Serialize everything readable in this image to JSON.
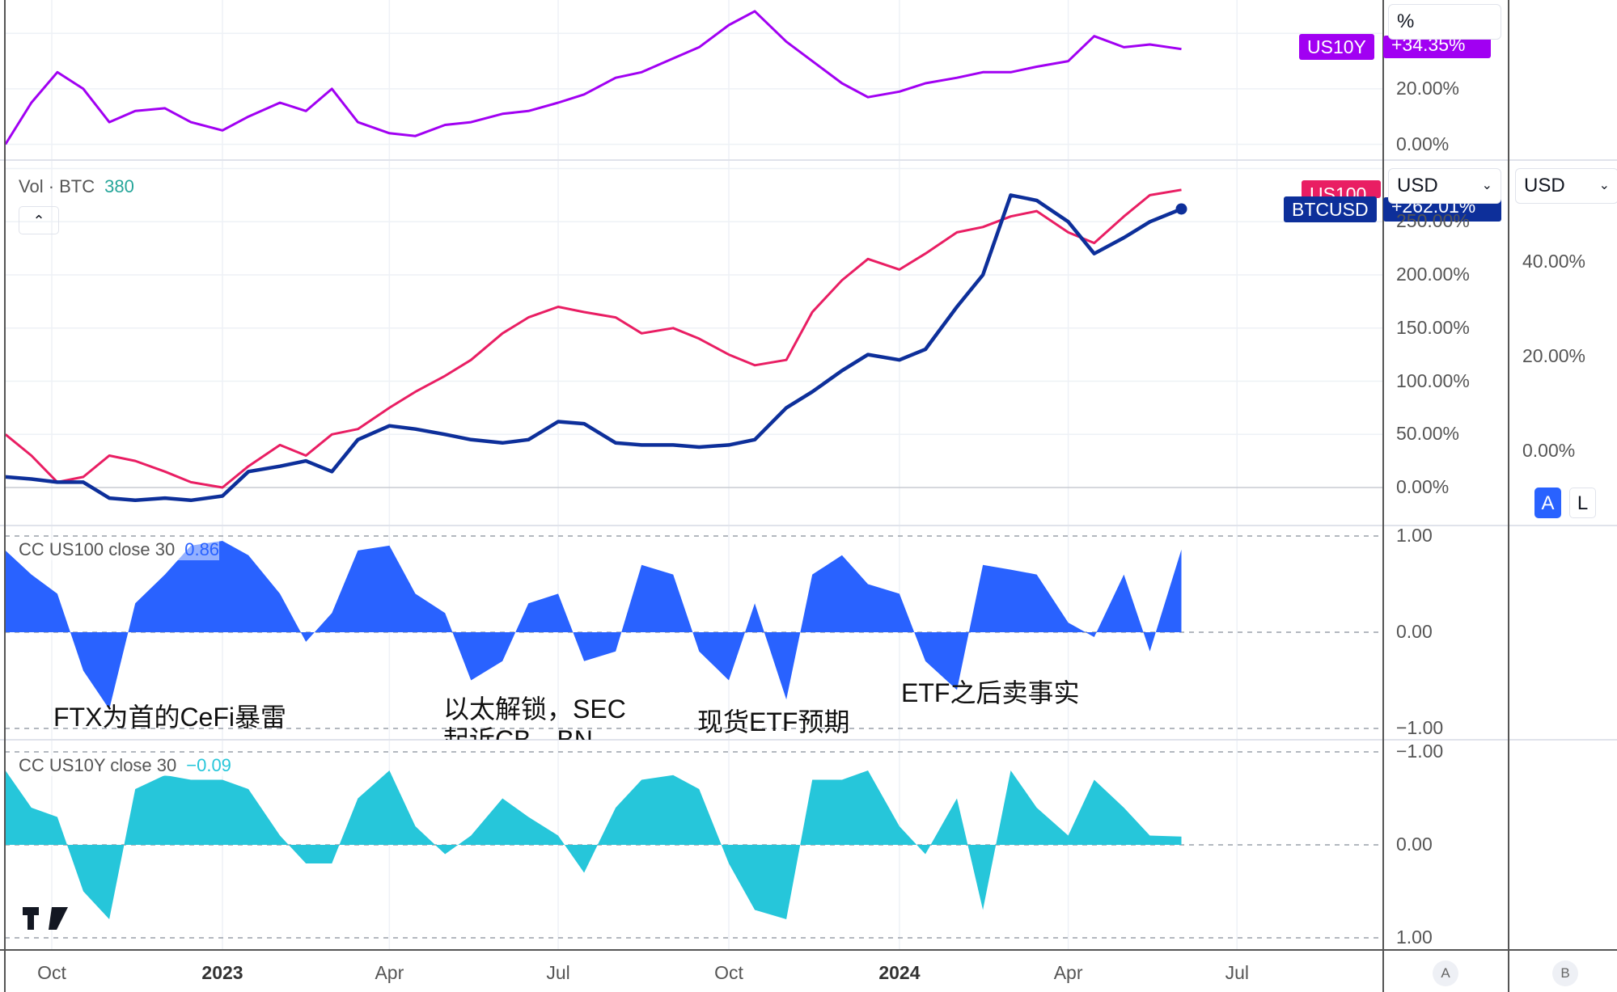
{
  "colors": {
    "us10y": "#a100f2",
    "us100": "#e91e63",
    "btcusd": "#0d2f9a",
    "cc_us100": "#2962ff",
    "cc_us10y": "#26c6da",
    "volume_value": "#26a69a"
  },
  "legends": {
    "volume": {
      "label": "Vol · BTC",
      "value": "380"
    },
    "cc_us100": {
      "label": "CC US100 close 30",
      "value": "0.86"
    },
    "cc_us10y": {
      "label": "CC US10Y close 30",
      "value": "−0.09"
    }
  },
  "badges": {
    "us10y": {
      "symbol": "US10Y",
      "value": "+34.35%"
    },
    "us100": {
      "symbol": "US100"
    },
    "btcusd": {
      "symbol": "BTCUSD",
      "value": "+262.01%"
    }
  },
  "controls": {
    "scale_mode": "%",
    "currency_left": "USD",
    "currency_right": "USD",
    "auto_button": "A",
    "log_button": "L",
    "bottom_left_circle": "A",
    "bottom_right_circle": "B",
    "collapse_icon": "chevron-up-icon"
  },
  "annotations": [
    {
      "text": "FTX为首的CeFi暴雷"
    },
    {
      "text": "以太解锁，SEC"
    },
    {
      "text": "起诉CB、BN"
    },
    {
      "text": "现货ETF预期"
    },
    {
      "text": "ETF之后卖事实"
    }
  ],
  "chart_data": [
    {
      "type": "line",
      "pane": "US10Y",
      "x": [
        "2022-09-06",
        "2022-09-20",
        "2022-10-04",
        "2022-10-18",
        "2022-11-01",
        "2022-11-15",
        "2022-12-01",
        "2022-12-15",
        "2023-01-01",
        "2023-01-15",
        "2023-02-01",
        "2023-02-15",
        "2023-03-01",
        "2023-03-15",
        "2023-04-01",
        "2023-04-15",
        "2023-05-01",
        "2023-05-15",
        "2023-06-01",
        "2023-06-15",
        "2023-07-01",
        "2023-07-15",
        "2023-08-01",
        "2023-08-15",
        "2023-09-01",
        "2023-09-15",
        "2023-10-01",
        "2023-10-15",
        "2023-11-01",
        "2023-11-15",
        "2023-12-01",
        "2023-12-15",
        "2024-01-01",
        "2024-01-15",
        "2024-02-01",
        "2024-02-15",
        "2024-03-01",
        "2024-03-15",
        "2024-04-01",
        "2024-04-15",
        "2024-05-01",
        "2024-05-15",
        "2024-06-01"
      ],
      "series": [
        {
          "name": "US10Y",
          "values": [
            0,
            15,
            26,
            20,
            8,
            12,
            13,
            8,
            5,
            10,
            15,
            12,
            20,
            8,
            4,
            3,
            7,
            8,
            11,
            12,
            15,
            18,
            24,
            26,
            31,
            35,
            43,
            48,
            37,
            30,
            22,
            17,
            19,
            22,
            24,
            26,
            26,
            28,
            30,
            39,
            35,
            36,
            34.35
          ]
        }
      ],
      "yticks": [
        "20.00%",
        "0.00%"
      ],
      "ytick_values": [
        20,
        0
      ],
      "ylim": [
        -12,
        52
      ]
    },
    {
      "type": "line",
      "pane": "main",
      "x": "shared",
      "series": [
        {
          "name": "US100",
          "values": [
            50,
            30,
            5,
            10,
            30,
            25,
            15,
            5,
            0,
            20,
            40,
            30,
            50,
            55,
            75,
            90,
            105,
            120,
            145,
            160,
            170,
            165,
            160,
            145,
            150,
            140,
            125,
            115,
            120,
            165,
            195,
            215,
            205,
            220,
            240,
            245,
            255,
            260,
            240,
            230,
            255,
            275,
            280
          ]
        },
        {
          "name": "BTCUSD",
          "values": [
            10,
            8,
            5,
            5,
            -10,
            -12,
            -10,
            -12,
            -8,
            15,
            20,
            25,
            15,
            45,
            58,
            55,
            50,
            45,
            42,
            45,
            62,
            60,
            42,
            40,
            40,
            38,
            40,
            45,
            75,
            90,
            110,
            125,
            120,
            130,
            170,
            200,
            275,
            270,
            250,
            220,
            235,
            250,
            262.01
          ]
        }
      ],
      "yticks": [
        "250.00%",
        "200.00%",
        "150.00%",
        "100.00%",
        "50.00%",
        "0.00%"
      ],
      "ytick_values": [
        250,
        200,
        150,
        100,
        50,
        0
      ],
      "secondary_yticks": [
        "40.00%",
        "20.00%",
        "0.00%"
      ]
    },
    {
      "type": "area",
      "pane": "CC US100 close 30",
      "x": "shared",
      "values": [
        0.85,
        0.6,
        0.4,
        -0.4,
        -0.8,
        0.3,
        0.6,
        0.9,
        0.95,
        0.8,
        0.4,
        -0.1,
        0.2,
        0.85,
        0.9,
        0.4,
        0.2,
        -0.5,
        -0.3,
        0.3,
        0.4,
        -0.3,
        -0.2,
        0.7,
        0.6,
        -0.2,
        -0.5,
        0.3,
        -0.7,
        0.6,
        0.8,
        0.5,
        0.4,
        -0.3,
        -0.6,
        0.7,
        0.65,
        0.6,
        0.1,
        -0.05,
        0.6,
        -0.2,
        0.86
      ],
      "yticks": [
        "1.00",
        "0.00",
        "−1.00"
      ],
      "ytick_values": [
        1,
        0,
        -1
      ],
      "ylim": [
        -1,
        1
      ]
    },
    {
      "type": "area",
      "pane": "CC US10Y close 30",
      "x": "shared",
      "y_inverted": true,
      "values": [
        -0.8,
        -0.4,
        -0.3,
        0.5,
        0.8,
        -0.6,
        -0.75,
        -0.7,
        -0.7,
        -0.6,
        -0.1,
        0.2,
        0.2,
        -0.5,
        -0.8,
        -0.2,
        0.1,
        -0.1,
        -0.5,
        -0.3,
        -0.1,
        0.3,
        -0.4,
        -0.7,
        -0.75,
        -0.6,
        0.2,
        0.7,
        0.8,
        -0.7,
        -0.7,
        -0.8,
        -0.2,
        0.1,
        -0.5,
        0.7,
        -0.8,
        -0.4,
        -0.1,
        -0.7,
        -0.4,
        -0.1,
        -0.09
      ],
      "yticks": [
        "−1.00",
        "0.00",
        "1.00"
      ],
      "ytick_values": [
        -1,
        0,
        1
      ],
      "ylim": [
        -1,
        1
      ]
    }
  ],
  "xaxis": {
    "ticks": [
      {
        "label": "Oct",
        "date": "2022-10-01",
        "year": false
      },
      {
        "label": "2023",
        "date": "2023-01-01",
        "year": true
      },
      {
        "label": "Apr",
        "date": "2023-04-01",
        "year": false
      },
      {
        "label": "Jul",
        "date": "2023-07-01",
        "year": false
      },
      {
        "label": "Oct",
        "date": "2023-10-01",
        "year": false
      },
      {
        "label": "2024",
        "date": "2024-01-01",
        "year": true
      },
      {
        "label": "Apr",
        "date": "2024-04-01",
        "year": false
      },
      {
        "label": "Jul",
        "date": "2024-07-01",
        "year": false
      }
    ]
  }
}
